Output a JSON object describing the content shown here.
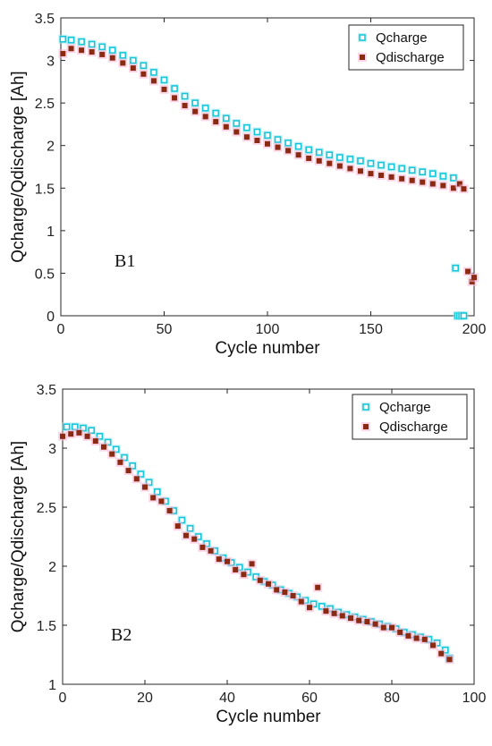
{
  "colors": {
    "charge": "#19c6d9",
    "charge_fill": "#9ae7ee",
    "discharge": "#8b2a12",
    "halo": "#f7b6d6"
  },
  "chart_data": [
    {
      "type": "scatter",
      "panel_label": "B1",
      "xlabel": "Cycle number",
      "ylabel": "Qcharge/Qdischarge [Ah]",
      "xlim": [
        0,
        200
      ],
      "ylim": [
        0,
        3.5
      ],
      "xticks": [
        "0",
        "50",
        "100",
        "150",
        "200"
      ],
      "yticks": [
        "0",
        "0.5",
        "1",
        "1.5",
        "2",
        "2.5",
        "3",
        "3.5"
      ],
      "legend_position": "top-right",
      "series": [
        {
          "name": "Qcharge",
          "marker": "open-square",
          "x": [
            1,
            5,
            10,
            15,
            20,
            25,
            30,
            35,
            40,
            45,
            50,
            55,
            60,
            65,
            70,
            75,
            80,
            85,
            90,
            95,
            100,
            105,
            110,
            115,
            120,
            125,
            130,
            135,
            140,
            145,
            150,
            155,
            160,
            165,
            170,
            175,
            180,
            185,
            190,
            191,
            192,
            193,
            194,
            195
          ],
          "y": [
            3.25,
            3.24,
            3.22,
            3.19,
            3.16,
            3.12,
            3.06,
            3.0,
            2.94,
            2.86,
            2.77,
            2.67,
            2.58,
            2.5,
            2.44,
            2.38,
            2.32,
            2.26,
            2.21,
            2.16,
            2.12,
            2.07,
            2.03,
            1.99,
            1.95,
            1.92,
            1.89,
            1.86,
            1.84,
            1.82,
            1.79,
            1.77,
            1.75,
            1.73,
            1.71,
            1.69,
            1.67,
            1.64,
            1.62,
            0.56,
            0.0,
            0.0,
            0.0,
            0.0
          ]
        },
        {
          "name": "Qdischarge",
          "marker": "filled-square",
          "x": [
            1,
            5,
            10,
            15,
            20,
            25,
            30,
            35,
            40,
            45,
            50,
            55,
            60,
            65,
            70,
            75,
            80,
            85,
            90,
            95,
            100,
            105,
            110,
            115,
            120,
            125,
            130,
            135,
            140,
            145,
            150,
            155,
            160,
            165,
            170,
            175,
            180,
            185,
            190,
            193,
            195,
            197,
            199,
            200
          ],
          "y": [
            3.08,
            3.14,
            3.12,
            3.1,
            3.07,
            3.03,
            2.97,
            2.91,
            2.84,
            2.76,
            2.66,
            2.56,
            2.47,
            2.4,
            2.34,
            2.28,
            2.22,
            2.16,
            2.1,
            2.06,
            2.02,
            1.98,
            1.94,
            1.89,
            1.85,
            1.82,
            1.79,
            1.76,
            1.73,
            1.7,
            1.67,
            1.65,
            1.63,
            1.61,
            1.59,
            1.57,
            1.55,
            1.53,
            1.5,
            1.55,
            1.49,
            0.52,
            0.4,
            0.45
          ]
        }
      ]
    },
    {
      "type": "scatter",
      "panel_label": "B2",
      "xlabel": "Cycle number",
      "ylabel": "Qcharge/Qdischarge [Ah]",
      "xlim": [
        0,
        100
      ],
      "ylim": [
        1,
        3.5
      ],
      "xticks": [
        "0",
        "20",
        "40",
        "60",
        "80",
        "100"
      ],
      "yticks": [
        "1",
        "1.5",
        "2",
        "2.5",
        "3",
        "3.5"
      ],
      "legend_position": "top-right",
      "series": [
        {
          "name": "Qcharge",
          "marker": "open-square",
          "x": [
            1,
            3,
            5,
            7,
            9,
            11,
            13,
            15,
            17,
            19,
            21,
            23,
            25,
            27,
            29,
            31,
            33,
            35,
            37,
            39,
            41,
            43,
            45,
            47,
            49,
            51,
            53,
            55,
            57,
            59,
            61,
            63,
            65,
            67,
            69,
            71,
            73,
            75,
            77,
            79,
            81,
            83,
            85,
            87,
            89,
            91,
            93,
            94
          ],
          "y": [
            3.18,
            3.18,
            3.17,
            3.15,
            3.1,
            3.05,
            2.99,
            2.92,
            2.85,
            2.78,
            2.71,
            2.63,
            2.55,
            2.47,
            2.39,
            2.32,
            2.25,
            2.19,
            2.13,
            2.07,
            2.03,
            1.99,
            1.95,
            1.91,
            1.87,
            1.84,
            1.8,
            1.77,
            1.74,
            1.71,
            1.68,
            1.66,
            1.64,
            1.61,
            1.59,
            1.57,
            1.55,
            1.53,
            1.51,
            1.49,
            1.47,
            1.44,
            1.42,
            1.4,
            1.38,
            1.35,
            1.29,
            1.22
          ]
        },
        {
          "name": "Qdischarge",
          "marker": "filled-square",
          "x": [
            0,
            2,
            4,
            6,
            8,
            10,
            12,
            14,
            16,
            18,
            20,
            22,
            24,
            26,
            28,
            30,
            32,
            34,
            36,
            38,
            40,
            42,
            44,
            46,
            48,
            50,
            52,
            54,
            56,
            58,
            60,
            62,
            64,
            66,
            68,
            70,
            72,
            74,
            76,
            78,
            80,
            82,
            84,
            86,
            88,
            90,
            92,
            94
          ],
          "y": [
            3.1,
            3.12,
            3.13,
            3.1,
            3.06,
            3.01,
            2.95,
            2.88,
            2.81,
            2.74,
            2.67,
            2.58,
            2.55,
            2.47,
            2.34,
            2.26,
            2.23,
            2.16,
            2.13,
            2.06,
            2.04,
            1.97,
            1.93,
            2.02,
            1.88,
            1.85,
            1.8,
            1.78,
            1.75,
            1.7,
            1.65,
            1.82,
            1.62,
            1.6,
            1.58,
            1.56,
            1.54,
            1.53,
            1.51,
            1.48,
            1.48,
            1.44,
            1.41,
            1.39,
            1.38,
            1.33,
            1.26,
            1.21
          ]
        }
      ]
    }
  ]
}
